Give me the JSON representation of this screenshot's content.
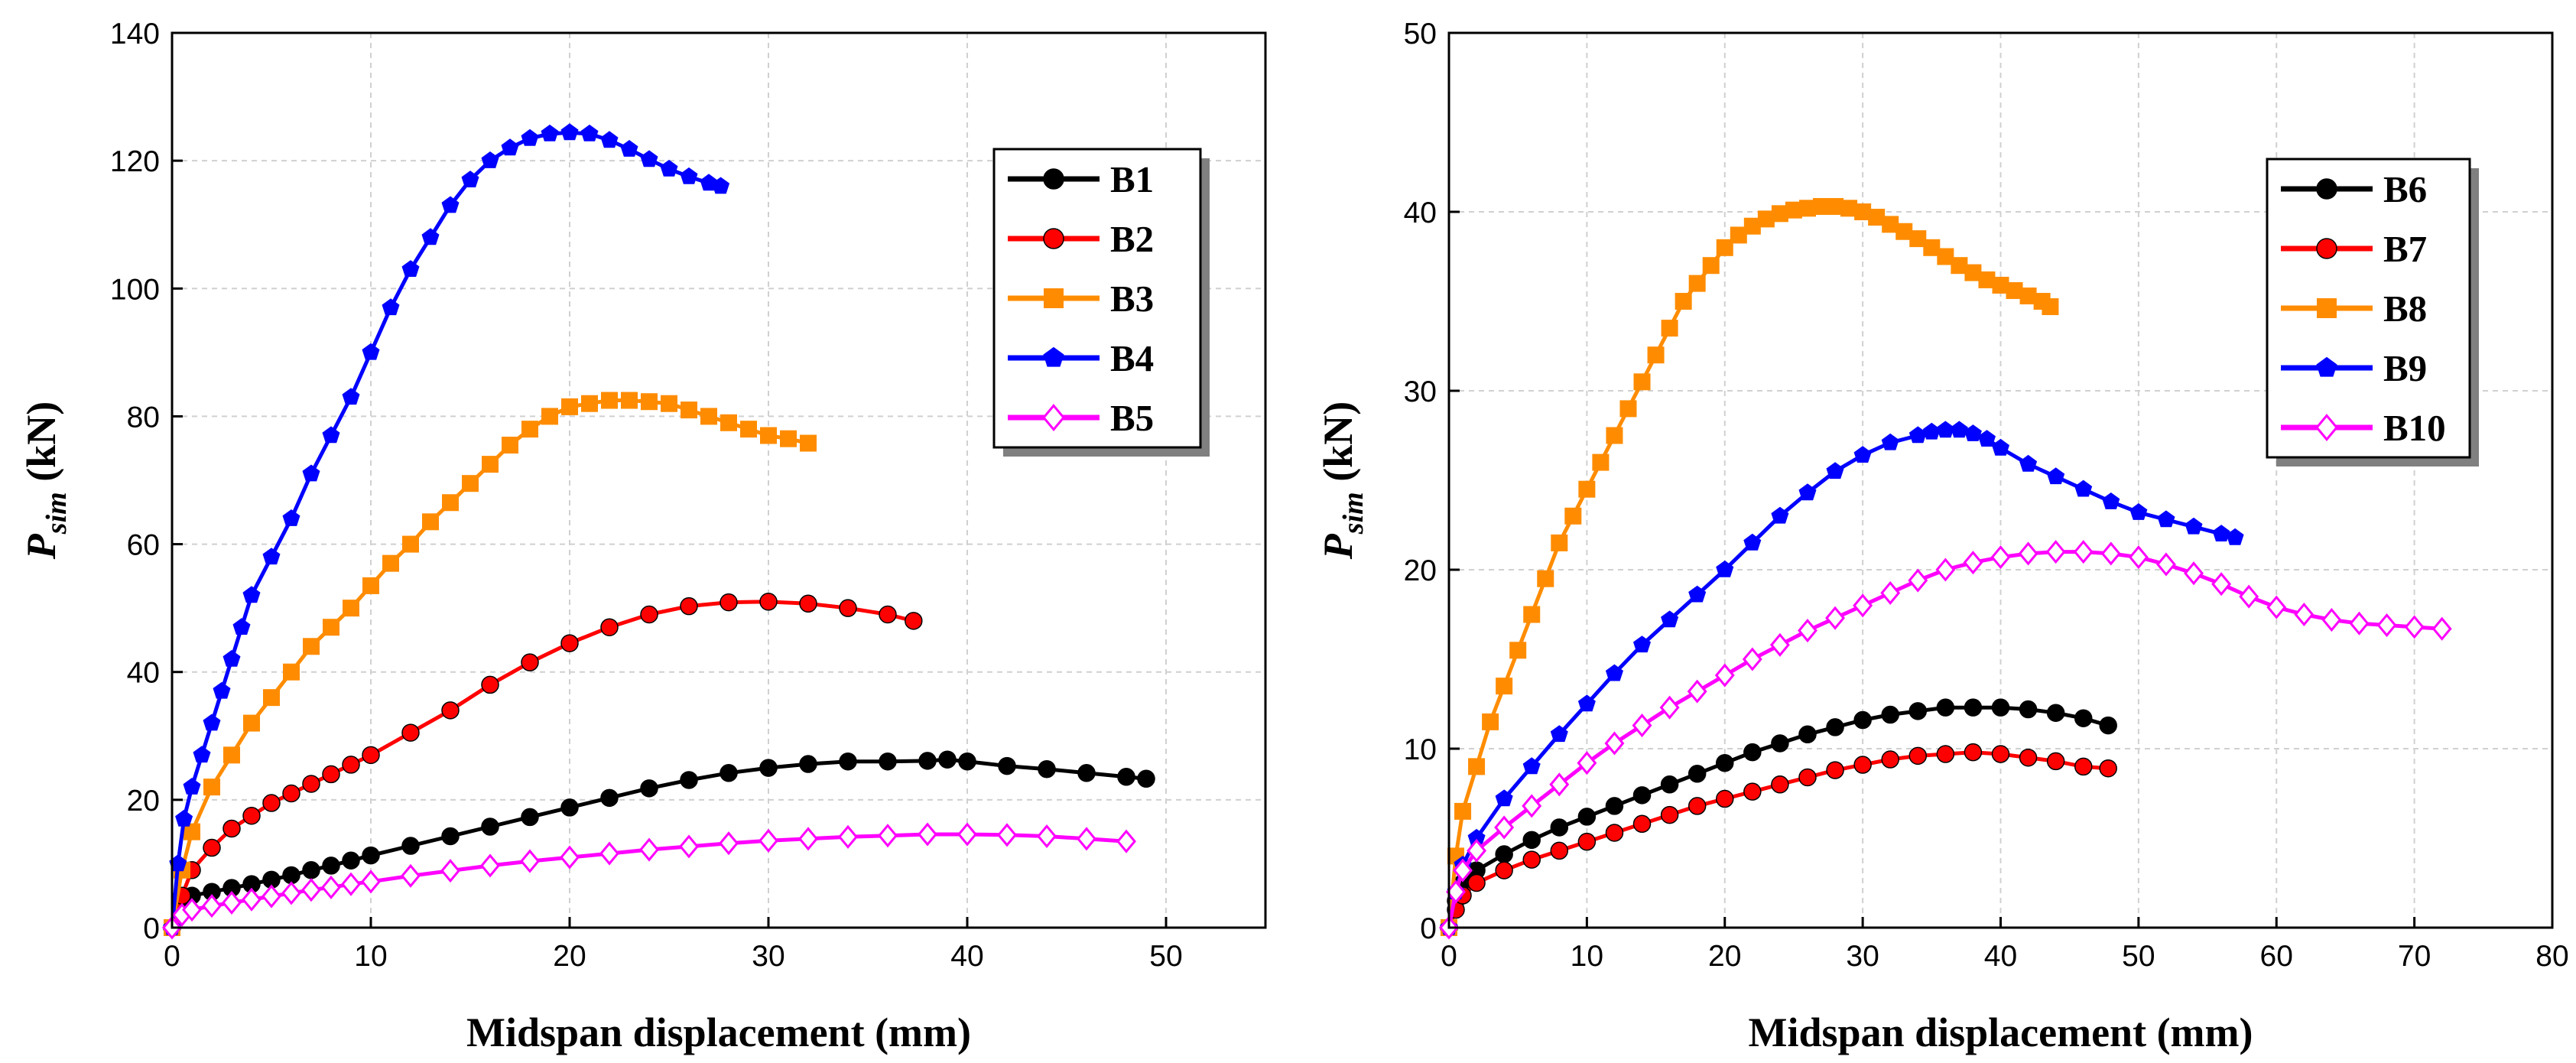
{
  "chart_data": [
    {
      "type": "line",
      "xlabel": "Midspan displacement (mm)",
      "ylabel_main": "P",
      "ylabel_sub": "sim",
      "ylabel_unit": " (kN)",
      "xlim": [
        0,
        55
      ],
      "ylim": [
        0,
        140
      ],
      "xticks": [
        0,
        10,
        20,
        30,
        40,
        50
      ],
      "yticks": [
        0,
        20,
        40,
        60,
        80,
        100,
        120,
        140
      ],
      "grid": true,
      "legend_position": "top-right",
      "series": [
        {
          "name": "B1",
          "color": "#000000",
          "marker": "circle",
          "x": [
            0,
            0.5,
            1,
            2,
            3,
            4,
            5,
            6,
            7,
            8,
            9,
            10,
            12,
            14,
            16,
            18,
            20,
            22,
            24,
            26,
            28,
            30,
            32,
            34,
            36,
            38,
            39,
            40,
            42,
            44,
            46,
            48,
            49
          ],
          "y": [
            0,
            4,
            5,
            5.6,
            6.2,
            6.8,
            7.5,
            8.2,
            9,
            9.7,
            10.5,
            11.3,
            12.8,
            14.3,
            15.8,
            17.3,
            18.8,
            20.3,
            21.8,
            23.1,
            24.2,
            25,
            25.6,
            26,
            26,
            26.1,
            26.3,
            26,
            25.3,
            24.8,
            24.2,
            23.6,
            23.3
          ]
        },
        {
          "name": "B2",
          "color": "#ff0000",
          "marker": "circle",
          "x": [
            0,
            0.5,
            1,
            2,
            3,
            4,
            5,
            6,
            7,
            8,
            9,
            10,
            12,
            14,
            16,
            18,
            20,
            22,
            24,
            26,
            28,
            30,
            32,
            34,
            36,
            37.3
          ],
          "y": [
            0,
            5,
            9,
            12.5,
            15.5,
            17.5,
            19.5,
            21,
            22.5,
            24,
            25.5,
            27,
            30.5,
            34,
            38,
            41.5,
            44.5,
            47,
            49,
            50.3,
            50.9,
            51,
            50.7,
            50,
            49,
            48
          ]
        },
        {
          "name": "B3",
          "color": "#ff8c00",
          "marker": "square",
          "x": [
            0,
            0.5,
            1,
            2,
            3,
            4,
            5,
            6,
            7,
            8,
            9,
            10,
            11,
            12,
            13,
            14,
            15,
            16,
            17,
            18,
            19,
            20,
            21,
            22,
            23,
            24,
            25,
            26,
            27,
            28,
            29,
            30,
            31,
            32
          ],
          "y": [
            0,
            9,
            15,
            22,
            27,
            32,
            36,
            40,
            44,
            47,
            50,
            53.5,
            57,
            60,
            63.5,
            66.5,
            69.5,
            72.5,
            75.5,
            78,
            80,
            81.5,
            82,
            82.5,
            82.5,
            82.3,
            82,
            81,
            80,
            79,
            78,
            77,
            76.5,
            75.8
          ]
        },
        {
          "name": "B4",
          "color": "#0000ff",
          "marker": "pentagon",
          "x": [
            0,
            0.3,
            0.6,
            1,
            1.5,
            2,
            2.5,
            3,
            3.5,
            4,
            5,
            6,
            7,
            8,
            9,
            10,
            11,
            12,
            13,
            14,
            15,
            16,
            17,
            18,
            19,
            20,
            21,
            22,
            23,
            24,
            25,
            26,
            27,
            27.6
          ],
          "y": [
            0,
            10,
            17,
            22,
            27,
            32,
            37,
            42,
            47,
            52,
            58,
            64,
            71,
            77,
            83,
            90,
            97,
            103,
            108,
            113,
            117,
            120,
            122,
            123.5,
            124.2,
            124.4,
            124.2,
            123.2,
            121.8,
            120.2,
            118.7,
            117.5,
            116.5,
            116
          ]
        },
        {
          "name": "B5",
          "color": "#ff00ff",
          "marker": "diamond",
          "x": [
            0,
            0.5,
            1,
            2,
            3,
            4,
            5,
            6,
            7,
            8,
            9,
            10,
            12,
            14,
            16,
            18,
            20,
            22,
            24,
            26,
            28,
            30,
            32,
            34,
            36,
            38,
            40,
            42,
            44,
            46,
            48
          ],
          "y": [
            0,
            2,
            2.8,
            3.4,
            3.9,
            4.4,
            4.9,
            5.4,
            5.9,
            6.3,
            6.8,
            7.2,
            8.1,
            8.9,
            9.7,
            10.4,
            11,
            11.6,
            12.2,
            12.7,
            13.2,
            13.6,
            13.9,
            14.2,
            14.4,
            14.6,
            14.6,
            14.5,
            14.3,
            13.9,
            13.5
          ]
        }
      ]
    },
    {
      "type": "line",
      "xlabel": "Midspan displacement (mm)",
      "ylabel_main": "P",
      "ylabel_sub": "sim",
      "ylabel_unit": " (kN)",
      "xlim": [
        0,
        80
      ],
      "ylim": [
        0,
        50
      ],
      "xticks": [
        0,
        10,
        20,
        30,
        40,
        50,
        60,
        70,
        80
      ],
      "yticks": [
        0,
        10,
        20,
        30,
        40,
        50
      ],
      "grid": true,
      "legend_position": "top-right",
      "series": [
        {
          "name": "B6",
          "color": "#000000",
          "marker": "circle",
          "x": [
            0,
            0.5,
            1,
            2,
            4,
            6,
            8,
            10,
            12,
            14,
            16,
            18,
            20,
            22,
            24,
            26,
            28,
            30,
            32,
            34,
            36,
            38,
            40,
            42,
            44,
            46,
            47.8
          ],
          "y": [
            0,
            1.5,
            2.5,
            3.2,
            4.1,
            4.9,
            5.6,
            6.2,
            6.8,
            7.4,
            8,
            8.6,
            9.2,
            9.8,
            10.3,
            10.8,
            11.2,
            11.6,
            11.9,
            12.1,
            12.3,
            12.3,
            12.3,
            12.2,
            12,
            11.7,
            11.3
          ]
        },
        {
          "name": "B7",
          "color": "#ff0000",
          "marker": "circle",
          "x": [
            0,
            0.5,
            1,
            2,
            4,
            6,
            8,
            10,
            12,
            14,
            16,
            18,
            20,
            22,
            24,
            26,
            28,
            30,
            32,
            34,
            36,
            38,
            40,
            42,
            44,
            46,
            47.8
          ],
          "y": [
            0,
            1,
            1.8,
            2.5,
            3.2,
            3.8,
            4.3,
            4.8,
            5.3,
            5.8,
            6.3,
            6.8,
            7.2,
            7.6,
            8,
            8.4,
            8.8,
            9.1,
            9.4,
            9.6,
            9.7,
            9.8,
            9.7,
            9.5,
            9.3,
            9,
            8.9
          ]
        },
        {
          "name": "B8",
          "color": "#ff8c00",
          "marker": "square",
          "x": [
            0,
            0.5,
            1,
            2,
            3,
            4,
            5,
            6,
            7,
            8,
            9,
            10,
            11,
            12,
            13,
            14,
            15,
            16,
            17,
            18,
            19,
            20,
            21,
            22,
            23,
            24,
            25,
            26,
            27,
            28,
            29,
            30,
            31,
            32,
            33,
            34,
            35,
            36,
            37,
            38,
            39,
            40,
            41,
            42,
            43,
            43.6
          ],
          "y": [
            0,
            4,
            6.5,
            9,
            11.5,
            13.5,
            15.5,
            17.5,
            19.5,
            21.5,
            23,
            24.5,
            26,
            27.5,
            29,
            30.5,
            32,
            33.5,
            35,
            36,
            37,
            38,
            38.7,
            39.2,
            39.6,
            39.9,
            40.1,
            40.2,
            40.3,
            40.3,
            40.2,
            40,
            39.7,
            39.3,
            38.9,
            38.5,
            38,
            37.5,
            37,
            36.6,
            36.2,
            35.9,
            35.6,
            35.3,
            35,
            34.7
          ]
        },
        {
          "name": "B9",
          "color": "#0000ff",
          "marker": "pentagon",
          "x": [
            0,
            0.5,
            1,
            2,
            4,
            6,
            8,
            10,
            12,
            14,
            16,
            18,
            20,
            22,
            24,
            26,
            28,
            30,
            32,
            34,
            35,
            36,
            37,
            38,
            39,
            40,
            42,
            44,
            46,
            48,
            50,
            52,
            54,
            56,
            57
          ],
          "y": [
            0,
            2,
            3.5,
            5,
            7.2,
            9,
            10.8,
            12.5,
            14.2,
            15.8,
            17.2,
            18.6,
            20,
            21.5,
            23,
            24.3,
            25.5,
            26.4,
            27.1,
            27.5,
            27.7,
            27.8,
            27.8,
            27.6,
            27.3,
            26.8,
            25.9,
            25.2,
            24.5,
            23.8,
            23.2,
            22.8,
            22.4,
            22,
            21.8
          ]
        },
        {
          "name": "B10",
          "color": "#ff00ff",
          "marker": "diamond",
          "x": [
            0,
            0.5,
            1,
            2,
            4,
            6,
            8,
            10,
            12,
            14,
            16,
            18,
            20,
            22,
            24,
            26,
            28,
            30,
            32,
            34,
            36,
            38,
            40,
            42,
            44,
            46,
            48,
            50,
            52,
            54,
            56,
            58,
            60,
            62,
            64,
            66,
            68,
            70,
            72
          ],
          "y": [
            0,
            2,
            3.2,
            4.3,
            5.6,
            6.8,
            8,
            9.2,
            10.3,
            11.3,
            12.3,
            13.2,
            14.1,
            15,
            15.8,
            16.6,
            17.3,
            18,
            18.7,
            19.4,
            20,
            20.4,
            20.7,
            20.9,
            21,
            21,
            20.9,
            20.7,
            20.3,
            19.8,
            19.2,
            18.5,
            17.9,
            17.5,
            17.2,
            17,
            16.9,
            16.8,
            16.7
          ]
        }
      ]
    }
  ]
}
